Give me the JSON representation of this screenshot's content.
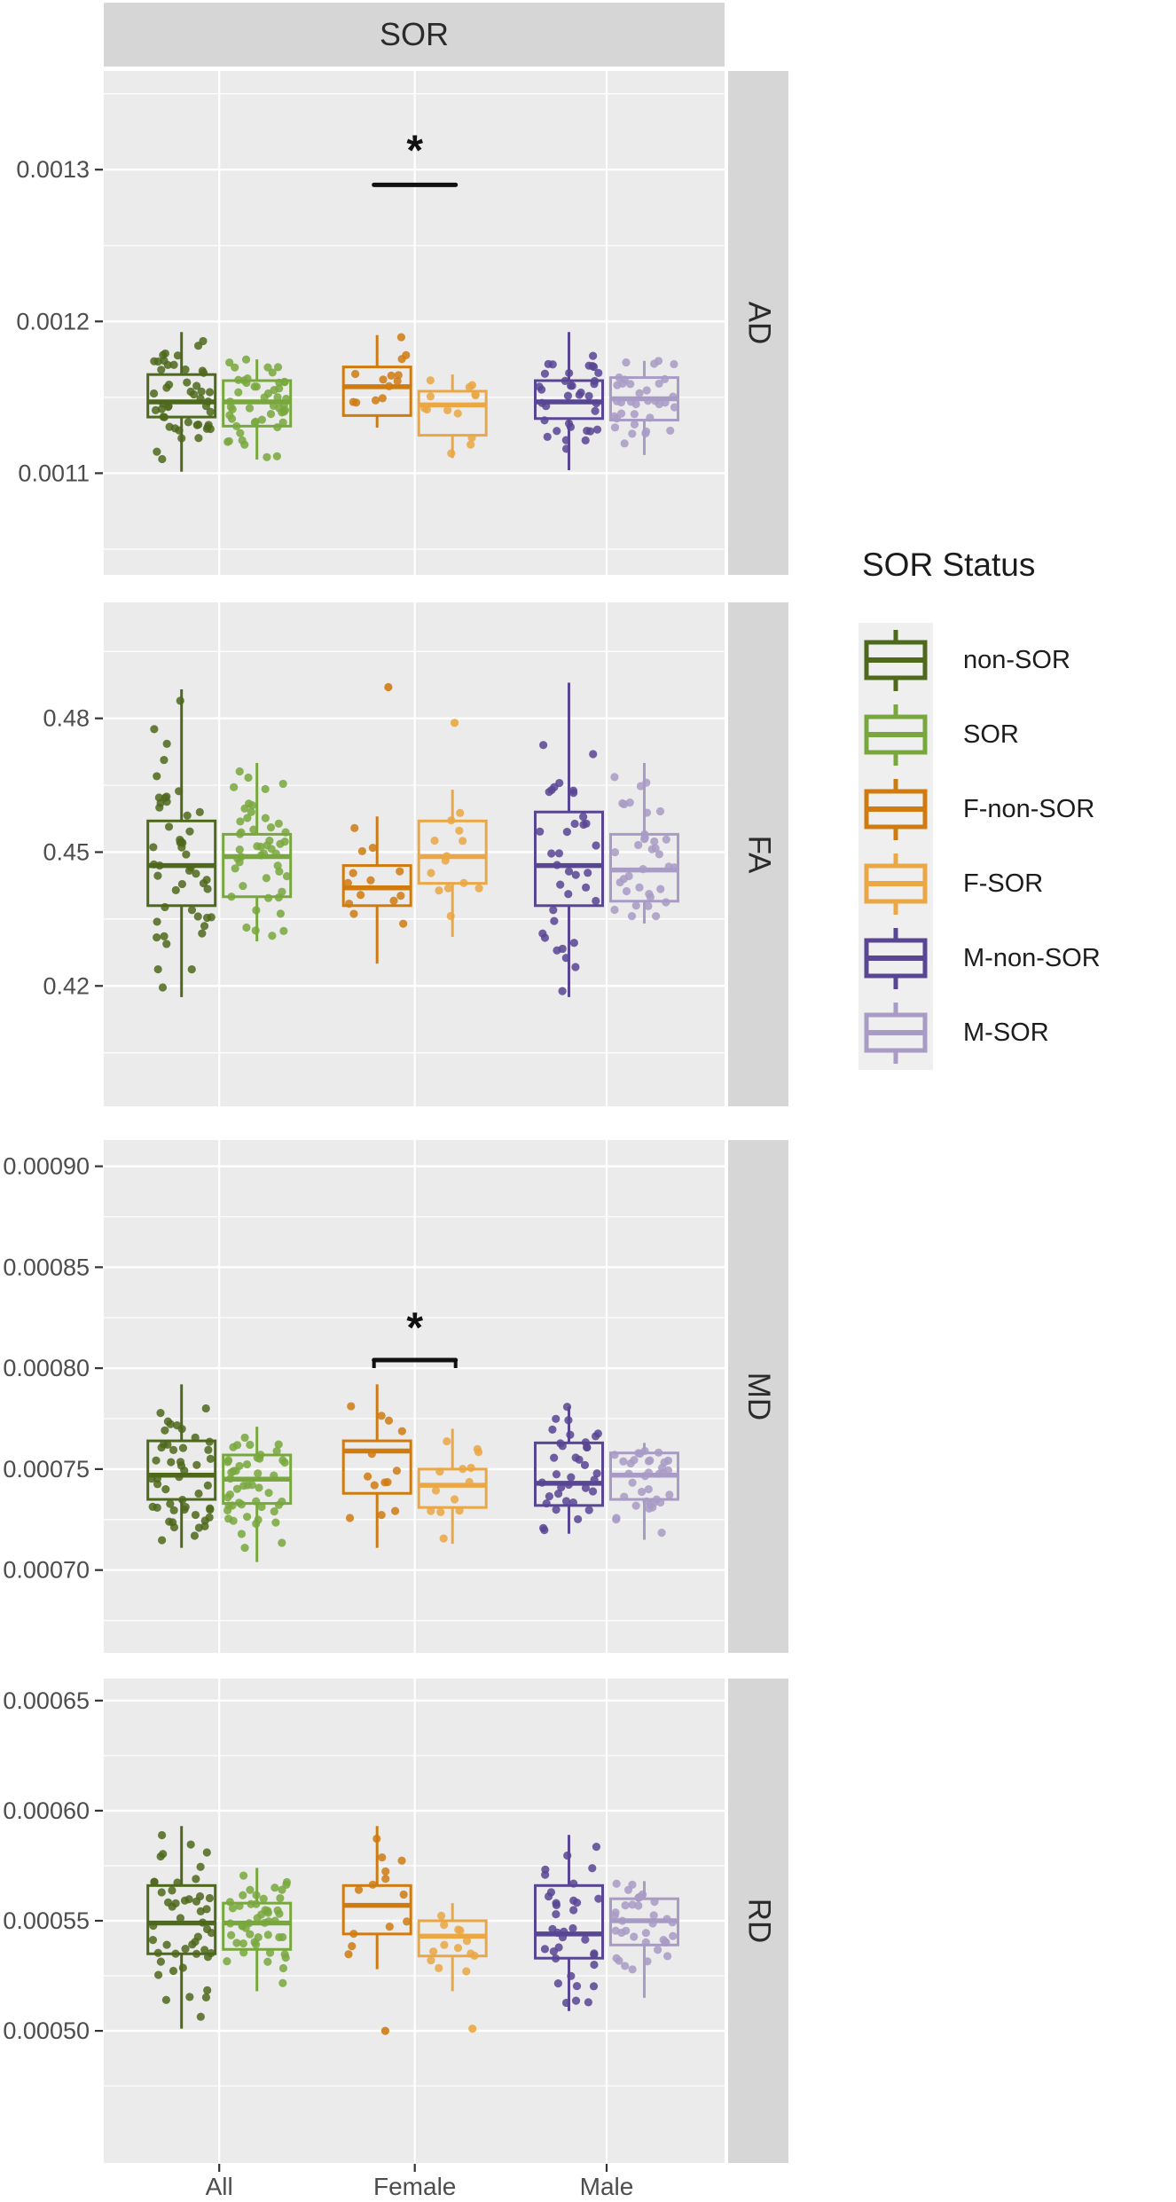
{
  "figure": {
    "background": "#ffffff",
    "panel_background": "#ebebeb",
    "strip_background": "#d6d6d6",
    "grid_color": "#ffffff",
    "axis_text_color": "#4d4d4d",
    "tick_mark_color": "#333333",
    "significance_color": "#111111"
  },
  "chart_data": {
    "type": "boxplot-faceted",
    "title": "SOR",
    "x": {
      "categories": [
        "All",
        "Female",
        "Male"
      ]
    },
    "legend": {
      "title": "SOR Status",
      "position": "right",
      "entries": [
        {
          "id": "non-SOR",
          "label": "non-SOR",
          "color": "#4e691c"
        },
        {
          "id": "SOR",
          "label": "SOR",
          "color": "#78a83d"
        },
        {
          "id": "F-non-SOR",
          "label": "F-non-SOR",
          "color": "#cf7b10"
        },
        {
          "id": "F-SOR",
          "label": "F-SOR",
          "color": "#eaa744"
        },
        {
          "id": "M-non-SOR",
          "label": "M-non-SOR",
          "color": "#584594"
        },
        {
          "id": "M-SOR",
          "label": "M-SOR",
          "color": "#a89bc6"
        }
      ]
    },
    "panels": [
      {
        "label": "AD",
        "ylim": [
          0.001033,
          0.001365
        ],
        "yticks": [
          {
            "value": 0.0013,
            "label": "0.0013"
          },
          {
            "value": 0.0012,
            "label": "0.0012"
          },
          {
            "value": 0.0011,
            "label": "0.0011"
          }
        ],
        "boxes": [
          {
            "group": "All",
            "legend_id": "non-SOR",
            "n": 48,
            "low": 0.001101,
            "q1": 0.001137,
            "median": 0.001147,
            "q3": 0.001165,
            "high": 0.001193,
            "outliers": []
          },
          {
            "group": "All",
            "legend_id": "SOR",
            "n": 48,
            "low": 0.001109,
            "q1": 0.001131,
            "median": 0.001147,
            "q3": 0.001161,
            "high": 0.001175,
            "outliers": []
          },
          {
            "group": "Female",
            "legend_id": "F-non-SOR",
            "n": 13,
            "low": 0.00113,
            "q1": 0.001138,
            "median": 0.001157,
            "q3": 0.00117,
            "high": 0.001191,
            "outliers": []
          },
          {
            "group": "Female",
            "legend_id": "F-SOR",
            "n": 13,
            "low": 0.00111,
            "q1": 0.001125,
            "median": 0.001145,
            "q3": 0.001154,
            "high": 0.001165,
            "outliers": []
          },
          {
            "group": "Male",
            "legend_id": "M-non-SOR",
            "n": 35,
            "low": 0.001102,
            "q1": 0.001136,
            "median": 0.001147,
            "q3": 0.001161,
            "high": 0.001193,
            "outliers": []
          },
          {
            "group": "Male",
            "legend_id": "M-SOR",
            "n": 35,
            "low": 0.001112,
            "q1": 0.001135,
            "median": 0.001149,
            "q3": 0.001163,
            "high": 0.001174,
            "outliers": []
          }
        ],
        "significance": [
          {
            "over_group": "Female",
            "label": "*",
            "bar_value": 0.00129,
            "label_value": 0.001318,
            "end_ticks": false
          }
        ]
      },
      {
        "label": "FA",
        "ylim": [
          0.393,
          0.506
        ],
        "yticks": [
          {
            "value": 0.48,
            "label": "0.48"
          },
          {
            "value": 0.45,
            "label": "0.45"
          },
          {
            "value": 0.42,
            "label": "0.42"
          }
        ],
        "boxes": [
          {
            "group": "All",
            "legend_id": "non-SOR",
            "n": 48,
            "low": 0.4175,
            "q1": 0.438,
            "median": 0.447,
            "q3": 0.457,
            "high": 0.4865,
            "outliers": []
          },
          {
            "group": "All",
            "legend_id": "SOR",
            "n": 48,
            "low": 0.43,
            "q1": 0.44,
            "median": 0.449,
            "q3": 0.454,
            "high": 0.47,
            "outliers": []
          },
          {
            "group": "Female",
            "legend_id": "F-non-SOR",
            "n": 13,
            "low": 0.425,
            "q1": 0.438,
            "median": 0.442,
            "q3": 0.447,
            "high": 0.458,
            "outliers": [
              0.487
            ]
          },
          {
            "group": "Female",
            "legend_id": "F-SOR",
            "n": 13,
            "low": 0.431,
            "q1": 0.443,
            "median": 0.449,
            "q3": 0.457,
            "high": 0.464,
            "outliers": [
              0.479
            ]
          },
          {
            "group": "Male",
            "legend_id": "M-non-SOR",
            "n": 35,
            "low": 0.4175,
            "q1": 0.438,
            "median": 0.447,
            "q3": 0.459,
            "high": 0.488,
            "outliers": []
          },
          {
            "group": "Male",
            "legend_id": "M-SOR",
            "n": 35,
            "low": 0.434,
            "q1": 0.439,
            "median": 0.446,
            "q3": 0.454,
            "high": 0.47,
            "outliers": []
          }
        ],
        "significance": []
      },
      {
        "label": "MD",
        "ylim": [
          0.000659,
          0.000913
        ],
        "yticks": [
          {
            "value": 0.0009,
            "label": "0.00090"
          },
          {
            "value": 0.00085,
            "label": "0.00085"
          },
          {
            "value": 0.0008,
            "label": "0.00080"
          },
          {
            "value": 0.00075,
            "label": "0.00075"
          },
          {
            "value": 0.0007,
            "label": "0.00070"
          }
        ],
        "boxes": [
          {
            "group": "All",
            "legend_id": "non-SOR",
            "n": 48,
            "low": 0.000711,
            "q1": 0.000735,
            "median": 0.000747,
            "q3": 0.000764,
            "high": 0.000792,
            "outliers": []
          },
          {
            "group": "All",
            "legend_id": "SOR",
            "n": 48,
            "low": 0.000704,
            "q1": 0.000733,
            "median": 0.000745,
            "q3": 0.000757,
            "high": 0.000771,
            "outliers": []
          },
          {
            "group": "Female",
            "legend_id": "F-non-SOR",
            "n": 13,
            "low": 0.000711,
            "q1": 0.000738,
            "median": 0.000759,
            "q3": 0.000764,
            "high": 0.000792,
            "outliers": []
          },
          {
            "group": "Female",
            "legend_id": "F-SOR",
            "n": 13,
            "low": 0.000713,
            "q1": 0.000731,
            "median": 0.000742,
            "q3": 0.00075,
            "high": 0.00077,
            "outliers": []
          },
          {
            "group": "Male",
            "legend_id": "M-non-SOR",
            "n": 35,
            "low": 0.000718,
            "q1": 0.000732,
            "median": 0.000743,
            "q3": 0.000763,
            "high": 0.000781,
            "outliers": []
          },
          {
            "group": "Male",
            "legend_id": "M-SOR",
            "n": 35,
            "low": 0.000715,
            "q1": 0.000735,
            "median": 0.000747,
            "q3": 0.000758,
            "high": 0.000763,
            "outliers": []
          }
        ],
        "significance": [
          {
            "over_group": "Female",
            "label": "*",
            "bar_value": 0.000804,
            "label_value": 0.000824,
            "end_ticks": true
          }
        ]
      },
      {
        "label": "RD",
        "ylim": [
          0.00044,
          0.00066
        ],
        "yticks": [
          {
            "value": 0.00065,
            "label": "0.00065"
          },
          {
            "value": 0.0006,
            "label": "0.00060"
          },
          {
            "value": 0.00055,
            "label": "0.00055"
          },
          {
            "value": 0.0005,
            "label": "0.00050"
          }
        ],
        "boxes": [
          {
            "group": "All",
            "legend_id": "non-SOR",
            "n": 48,
            "low": 0.000501,
            "q1": 0.000535,
            "median": 0.000549,
            "q3": 0.000566,
            "high": 0.000593,
            "outliers": []
          },
          {
            "group": "All",
            "legend_id": "SOR",
            "n": 48,
            "low": 0.000518,
            "q1": 0.000537,
            "median": 0.000549,
            "q3": 0.000558,
            "high": 0.000574,
            "outliers": []
          },
          {
            "group": "Female",
            "legend_id": "F-non-SOR",
            "n": 13,
            "low": 0.000528,
            "q1": 0.000544,
            "median": 0.000557,
            "q3": 0.000566,
            "high": 0.000593,
            "outliers": [
              0.0005
            ]
          },
          {
            "group": "Female",
            "legend_id": "F-SOR",
            "n": 13,
            "low": 0.000518,
            "q1": 0.000534,
            "median": 0.000543,
            "q3": 0.00055,
            "high": 0.000558,
            "outliers": [
              0.000501
            ]
          },
          {
            "group": "Male",
            "legend_id": "M-non-SOR",
            "n": 35,
            "low": 0.000509,
            "q1": 0.000533,
            "median": 0.000544,
            "q3": 0.000566,
            "high": 0.000589,
            "outliers": []
          },
          {
            "group": "Male",
            "legend_id": "M-SOR",
            "n": 35,
            "low": 0.000515,
            "q1": 0.000539,
            "median": 0.00055,
            "q3": 0.00056,
            "high": 0.000568,
            "outliers": []
          }
        ],
        "significance": []
      }
    ]
  }
}
